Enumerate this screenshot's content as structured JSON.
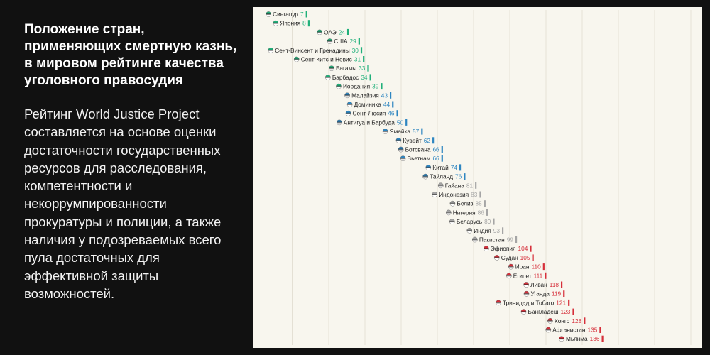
{
  "heading": {
    "title": "Положение стран, применяющих смертную казнь, в мировом рейтинге качества уголовного правосудия",
    "description": "Рейтинг World Justice Project составляется на основе оценки достаточности государственных ресурсов для расследования, компетентности и некоррумпированности прокуратуры и полиции, а также наличия у подозреваемых всего пула достаточных для эффективной защиты возможностей."
  },
  "chart_data": {
    "type": "bar",
    "title": "",
    "xlabel": "",
    "ylabel": "",
    "xlim": [
      1,
      140
    ],
    "grid": true,
    "legend": "none",
    "colors": {
      "green": "#20b07a",
      "blue": "#2e86c1",
      "gray": "#a5a5a5",
      "red": "#d62f3a"
    },
    "countries": [
      {
        "name": "Сингапур",
        "rank": 7,
        "color": "#20b07a",
        "flag": "singapore-flag-icon"
      },
      {
        "name": "Япония",
        "rank": 8,
        "color": "#20b07a",
        "flag": "japan-flag-icon"
      },
      {
        "name": "ОАЭ",
        "rank": 24,
        "color": "#20b07a",
        "flag": "uae-flag-icon"
      },
      {
        "name": "США",
        "rank": 29,
        "color": "#20b07a",
        "flag": "usa-flag-icon"
      },
      {
        "name": "Сент-Винсент и Гренадины",
        "rank": 30,
        "color": "#20b07a",
        "flag": "saint-vincent-flag-icon"
      },
      {
        "name": "Сент-Китс и Невис",
        "rank": 31,
        "color": "#20b07a",
        "flag": "saint-kitts-flag-icon"
      },
      {
        "name": "Багамы",
        "rank": 33,
        "color": "#20b07a",
        "flag": "bahamas-flag-icon"
      },
      {
        "name": "Барбадос",
        "rank": 34,
        "color": "#20b07a",
        "flag": "barbados-flag-icon"
      },
      {
        "name": "Иордания",
        "rank": 39,
        "color": "#20b07a",
        "flag": "jordan-flag-icon"
      },
      {
        "name": "Малайзия",
        "rank": 43,
        "color": "#2e86c1",
        "flag": "malaysia-flag-icon"
      },
      {
        "name": "Доминика",
        "rank": 44,
        "color": "#2e86c1",
        "flag": "dominica-flag-icon"
      },
      {
        "name": "Сент-Люсия",
        "rank": 46,
        "color": "#2e86c1",
        "flag": "saint-lucia-flag-icon"
      },
      {
        "name": "Антигуа и Барбуда",
        "rank": 50,
        "color": "#2e86c1",
        "flag": "antigua-flag-icon"
      },
      {
        "name": "Ямайка",
        "rank": 57,
        "color": "#2e86c1",
        "flag": "jamaica-flag-icon"
      },
      {
        "name": "Кувейт",
        "rank": 62,
        "color": "#2e86c1",
        "flag": "kuwait-flag-icon"
      },
      {
        "name": "Ботсвана",
        "rank": 66,
        "color": "#2e86c1",
        "flag": "botswana-flag-icon"
      },
      {
        "name": "Вьетнам",
        "rank": 66,
        "color": "#2e86c1",
        "flag": "vietnam-flag-icon"
      },
      {
        "name": "Китай",
        "rank": 74,
        "color": "#2e86c1",
        "flag": "china-flag-icon"
      },
      {
        "name": "Тайланд",
        "rank": 76,
        "color": "#2e86c1",
        "flag": "thailand-flag-icon"
      },
      {
        "name": "Гайана",
        "rank": 81,
        "color": "#a5a5a5",
        "flag": "guyana-flag-icon"
      },
      {
        "name": "Индонезия",
        "rank": 83,
        "color": "#a5a5a5",
        "flag": "indonesia-flag-icon"
      },
      {
        "name": "Белиз",
        "rank": 85,
        "color": "#a5a5a5",
        "flag": "belize-flag-icon"
      },
      {
        "name": "Нигерия",
        "rank": 86,
        "color": "#a5a5a5",
        "flag": "nigeria-flag-icon"
      },
      {
        "name": "Беларусь",
        "rank": 89,
        "color": "#a5a5a5",
        "flag": "belarus-flag-icon"
      },
      {
        "name": "Индия",
        "rank": 93,
        "color": "#a5a5a5",
        "flag": "india-flag-icon"
      },
      {
        "name": "Пакистан",
        "rank": 99,
        "color": "#a5a5a5",
        "flag": "pakistan-flag-icon"
      },
      {
        "name": "Эфиопия",
        "rank": 104,
        "color": "#d62f3a",
        "flag": "ethiopia-flag-icon"
      },
      {
        "name": "Судан",
        "rank": 105,
        "color": "#d62f3a",
        "flag": "sudan-flag-icon"
      },
      {
        "name": "Иран",
        "rank": 110,
        "color": "#d62f3a",
        "flag": "iran-flag-icon"
      },
      {
        "name": "Египет",
        "rank": 111,
        "color": "#d62f3a",
        "flag": "egypt-flag-icon"
      },
      {
        "name": "Ливан",
        "rank": 118,
        "color": "#d62f3a",
        "flag": "lebanon-flag-icon"
      },
      {
        "name": "Уганда",
        "rank": 119,
        "color": "#d62f3a",
        "flag": "uganda-flag-icon"
      },
      {
        "name": "Тринидад и Тобаго",
        "rank": 121,
        "color": "#d62f3a",
        "flag": "trinidad-flag-icon"
      },
      {
        "name": "Бангладеш",
        "rank": 123,
        "color": "#d62f3a",
        "flag": "bangladesh-flag-icon"
      },
      {
        "name": "Конго",
        "rank": 128,
        "color": "#d62f3a",
        "flag": "congo-flag-icon"
      },
      {
        "name": "Афганистан",
        "rank": 135,
        "color": "#d62f3a",
        "flag": "afghanistan-flag-icon"
      },
      {
        "name": "Мьянма",
        "rank": 136,
        "color": "#d62f3a",
        "flag": "myanmar-flag-icon"
      }
    ]
  }
}
